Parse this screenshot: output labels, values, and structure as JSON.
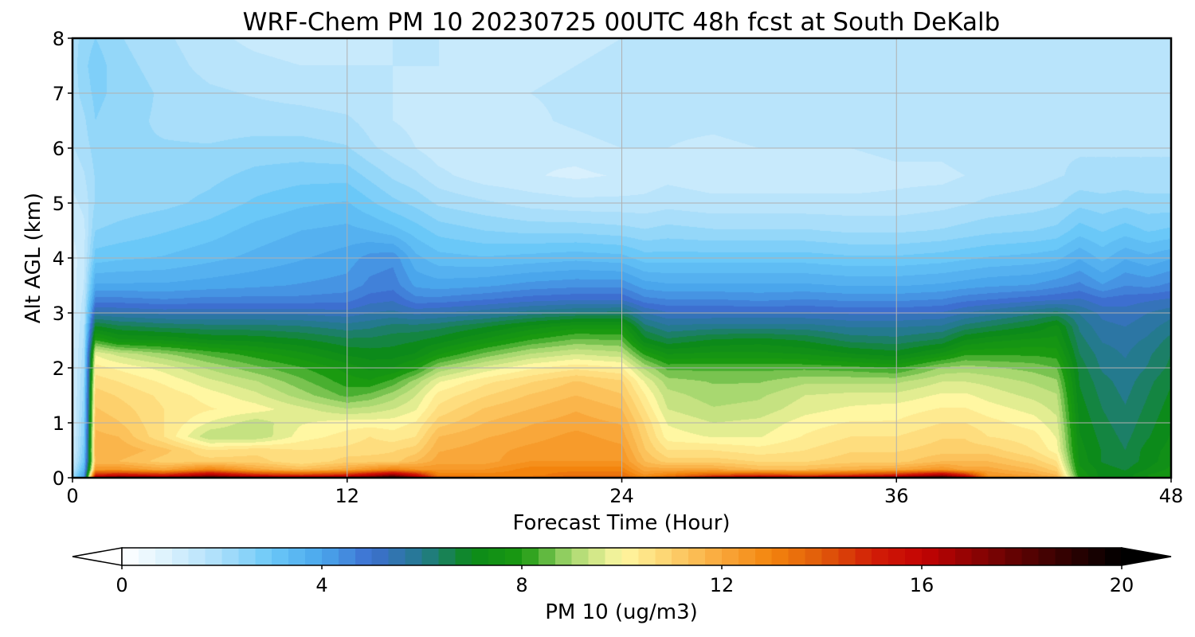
{
  "chart_data": {
    "type": "heatmap",
    "title": "WRF-Chem PM 10  20230725 00UTC 48h fcst at South DeKalb",
    "xlabel": "Forecast Time (Hour)",
    "ylabel": "Alt AGL (km)",
    "xlim": [
      0,
      48
    ],
    "ylim": [
      0,
      8
    ],
    "x_ticks": [
      0,
      12,
      24,
      36,
      48
    ],
    "y_ticks": [
      0,
      1,
      2,
      3,
      4,
      5,
      6,
      7,
      8
    ],
    "grid": true,
    "x": [
      0,
      0.5,
      1,
      2,
      4,
      6,
      8,
      10,
      12,
      13,
      14,
      15,
      16,
      18,
      20,
      22,
      24,
      25,
      26,
      28,
      30,
      32,
      34,
      36,
      38,
      39,
      40,
      42,
      43,
      44,
      45,
      46,
      47,
      48
    ],
    "y": [
      0,
      0.05,
      0.15,
      0.3,
      0.5,
      0.75,
      1,
      1.25,
      1.5,
      1.75,
      2,
      2.25,
      2.5,
      2.75,
      3,
      3.25,
      3.5,
      4,
      4.5,
      5,
      5.5,
      6,
      6.5,
      7,
      7.5,
      8
    ],
    "z_rows_by_altitude": [
      [
        2,
        4,
        17,
        18,
        17.5,
        18.5,
        17.5,
        17,
        17.5,
        18,
        19.5,
        17,
        14,
        13.5,
        13.5,
        14,
        14,
        13,
        14,
        16,
        17,
        16.5,
        17,
        18,
        19,
        17,
        13,
        12.5,
        12,
        8,
        7,
        7,
        7.5,
        8
      ],
      [
        2,
        4,
        15,
        15.5,
        15,
        16.5,
        15,
        14.5,
        15,
        16,
        17,
        15.5,
        13,
        13,
        13,
        13.5,
        13.5,
        12.5,
        13,
        14,
        14.5,
        14,
        14.5,
        15,
        16.5,
        15,
        12.5,
        12,
        11.5,
        7.8,
        7,
        7,
        7.5,
        7.8
      ],
      [
        1.5,
        3.5,
        12.5,
        12.5,
        12,
        13,
        12,
        11.5,
        12,
        12.5,
        13,
        12.5,
        12.5,
        12.5,
        13,
        13,
        13,
        12,
        12,
        12,
        11.5,
        11.5,
        11.8,
        12,
        12.5,
        12,
        12,
        11.5,
        11,
        7.6,
        7,
        6.8,
        7.2,
        7.6
      ],
      [
        1.2,
        3,
        11.5,
        11.5,
        11,
        11,
        11,
        10.5,
        11,
        11,
        11,
        11.5,
        12,
        12,
        12.5,
        12.5,
        12.5,
        11.5,
        11,
        11,
        10.8,
        10.8,
        11,
        11,
        11.5,
        11.5,
        11.5,
        11,
        10.5,
        7.4,
        6.8,
        6.6,
        7,
        7.4
      ],
      [
        1,
        2.8,
        11.8,
        11.8,
        11.3,
        10.5,
        10.7,
        10.5,
        10.6,
        10.7,
        10.8,
        11,
        11.8,
        12,
        12.3,
        12.5,
        12.3,
        11.2,
        10.5,
        10.5,
        10.3,
        10.5,
        10.8,
        10.8,
        11,
        11,
        11,
        10.5,
        10,
        7.3,
        6.8,
        6.5,
        7,
        7.3
      ],
      [
        1,
        2.6,
        11.6,
        11.5,
        10.5,
        9.2,
        9.2,
        10,
        10.3,
        10.5,
        10.3,
        10.5,
        11.5,
        11.8,
        12,
        12.3,
        12,
        11,
        10,
        9.8,
        9.8,
        10.2,
        10.5,
        10.5,
        10.8,
        10.8,
        10.5,
        10.3,
        9.8,
        7.2,
        6.7,
        6.4,
        6.8,
        7.2
      ],
      [
        1,
        2.5,
        11.4,
        11.2,
        10.5,
        9.8,
        9.3,
        9.8,
        10,
        10,
        10,
        10.2,
        11,
        11.5,
        11.8,
        12,
        11.8,
        10.8,
        9.8,
        9.5,
        9.6,
        10,
        10.2,
        10.2,
        10.5,
        10.5,
        10.3,
        10,
        9.6,
        7.1,
        6.6,
        6.3,
        6.7,
        7.1
      ],
      [
        1,
        2.4,
        11.2,
        11,
        10.5,
        10.2,
        10,
        9.6,
        9.2,
        9.3,
        9.5,
        9.8,
        10.6,
        11.2,
        11.5,
        11.8,
        11.5,
        10.5,
        9.5,
        9.2,
        9.3,
        9.7,
        9.9,
        10,
        10.2,
        10.2,
        10,
        9.7,
        9.4,
        7,
        6.5,
        6.2,
        6.6,
        7
      ],
      [
        1,
        2.3,
        11,
        10.8,
        10.4,
        10,
        9.6,
        9,
        8.4,
        8.6,
        9,
        9.5,
        10.3,
        10.8,
        11.2,
        11.5,
        11.2,
        10.2,
        9.3,
        9,
        9.1,
        9.5,
        9.6,
        9.6,
        9.9,
        9.9,
        9.7,
        9.4,
        9.2,
        6.9,
        6.4,
        6.1,
        6.5,
        6.9
      ],
      [
        1,
        2.2,
        10.7,
        10.5,
        10.1,
        9.6,
        9.2,
        8.6,
        8,
        7.9,
        8.3,
        9,
        9.8,
        10.4,
        10.8,
        11.2,
        10.9,
        9.8,
        9,
        8.8,
        8.8,
        9.1,
        9.1,
        9.1,
        9.5,
        9.5,
        9.4,
        9.1,
        8.9,
        6.8,
        6.3,
        6,
        6.4,
        6.8
      ],
      [
        1,
        2.1,
        10.3,
        10.1,
        9.7,
        9.1,
        8.6,
        8.2,
        7.7,
        7.4,
        7.5,
        8,
        8.9,
        9.6,
        10.1,
        10.4,
        10.2,
        9.1,
        8.4,
        8.4,
        8.4,
        8.4,
        8.3,
        8.1,
        8.9,
        9,
        8.9,
        8.7,
        8.5,
        6.7,
        6.1,
        5.9,
        6.2,
        6.6
      ],
      [
        1,
        2,
        9.8,
        9.4,
        8.9,
        8.4,
        8,
        7.6,
        7.1,
        7,
        7,
        7.2,
        7.8,
        8.6,
        9.2,
        9.5,
        9.3,
        8.1,
        7.5,
        7.6,
        7.6,
        7.5,
        7.2,
        7,
        7.6,
        8.1,
        8.1,
        8.1,
        8,
        6.5,
        6,
        5.8,
        6.1,
        6.5
      ],
      [
        1,
        1.9,
        8.2,
        7.6,
        7.5,
        7.2,
        7.1,
        6.9,
        6.6,
        6.6,
        6.7,
        6.8,
        7,
        7.6,
        8.2,
        8.6,
        8.5,
        7,
        6.6,
        6.9,
        7,
        6.8,
        6.4,
        6.3,
        6.6,
        7.2,
        7.4,
        7.6,
        7.6,
        6.3,
        5.8,
        5.7,
        5.9,
        6.3
      ],
      [
        1,
        1.8,
        6.9,
        6.6,
        6.4,
        6.3,
        6.3,
        6.2,
        6,
        6.1,
        6.3,
        6.3,
        6.4,
        6.8,
        7.3,
        7.7,
        7.7,
        6.3,
        5.9,
        6,
        6,
        6,
        5.8,
        5.8,
        5.9,
        6.3,
        6.5,
        6.9,
        7.3,
        6.1,
        5.6,
        5.5,
        5.7,
        6
      ],
      [
        1,
        1.7,
        5.6,
        5.5,
        5.4,
        5.4,
        5.4,
        5.4,
        5.3,
        5.5,
        5.6,
        5.4,
        5.5,
        5.7,
        6,
        6.2,
        6.3,
        5.5,
        5.2,
        5.2,
        5.2,
        5.2,
        5.1,
        5.1,
        5.2,
        5.5,
        5.7,
        6.1,
        6.3,
        5.8,
        5.4,
        5.3,
        5.5,
        5.7
      ],
      [
        1,
        1.6,
        4.6,
        4.6,
        4.5,
        4.6,
        4.6,
        4.6,
        4.7,
        5,
        5.1,
        4.6,
        4.6,
        4.8,
        5,
        5.1,
        5.1,
        4.6,
        4.5,
        4.5,
        4.4,
        4.5,
        4.4,
        4.4,
        4.5,
        4.7,
        4.8,
        5,
        5.1,
        5.2,
        4.9,
        5,
        5.1,
        5.2
      ],
      [
        1,
        1.5,
        3.9,
        3.9,
        3.9,
        4,
        4.1,
        4.2,
        4.3,
        4.6,
        4.7,
        4.1,
        4,
        4.1,
        4.3,
        4.4,
        4.4,
        4,
        3.9,
        3.9,
        3.9,
        3.9,
        3.8,
        3.8,
        3.9,
        4,
        4.1,
        4.2,
        4.4,
        4.6,
        4.2,
        4.5,
        4.4,
        4.6
      ],
      [
        1,
        1.4,
        3,
        3.1,
        3.2,
        3.4,
        3.6,
        3.8,
        4,
        4.3,
        4.4,
        3.6,
        3.3,
        3.2,
        3.3,
        3.4,
        3.3,
        3,
        3,
        3,
        3,
        3,
        2.9,
        2.9,
        3,
        3.1,
        3.2,
        3.3,
        3.4,
        3.8,
        3.4,
        3.8,
        3.6,
        3.8
      ],
      [
        1.2,
        1.4,
        2.5,
        2.6,
        2.8,
        3,
        3.3,
        3.5,
        3.6,
        3.5,
        3.3,
        3,
        2.7,
        2.5,
        2.4,
        2.4,
        2.3,
        2.2,
        2.3,
        2.2,
        2.2,
        2.2,
        2.1,
        2.1,
        2.2,
        2.3,
        2.4,
        2.5,
        2.6,
        3,
        2.8,
        3,
        2.8,
        2.9
      ],
      [
        1.4,
        1.6,
        2.2,
        2.3,
        2.4,
        2.6,
        2.9,
        3.1,
        3.2,
        2.9,
        2.6,
        2.4,
        2.1,
        1.9,
        1.7,
        1.6,
        1.6,
        1.6,
        1.7,
        1.6,
        1.6,
        1.6,
        1.6,
        1.6,
        1.7,
        1.8,
        1.9,
        2,
        2.1,
        2.4,
        2.3,
        2.4,
        2.3,
        2.3
      ],
      [
        1.6,
        1.8,
        2.2,
        2.2,
        2.3,
        2.4,
        2.6,
        2.7,
        2.7,
        2.4,
        2.1,
        1.9,
        1.6,
        1.3,
        1.2,
        1.1,
        1.2,
        1.3,
        1.4,
        1.3,
        1.3,
        1.3,
        1.3,
        1.4,
        1.4,
        1.5,
        1.6,
        1.7,
        1.8,
        1.9,
        1.9,
        1.9,
        1.9,
        1.9
      ],
      [
        1.8,
        2,
        2.3,
        2.2,
        2.2,
        2.2,
        2.3,
        2.3,
        2.2,
        1.9,
        1.7,
        1.5,
        1.3,
        1.2,
        1.2,
        1.3,
        1.5,
        1.5,
        1.5,
        1.4,
        1.5,
        1.5,
        1.5,
        1.6,
        1.6,
        1.7,
        1.7,
        1.8,
        1.8,
        1.8,
        1.8,
        1.8,
        1.8,
        1.8
      ],
      [
        1.9,
        2.1,
        2.5,
        2.3,
        2.1,
        2,
        2,
        2,
        1.9,
        1.7,
        1.5,
        1.4,
        1.3,
        1.3,
        1.4,
        1.6,
        1.8,
        1.7,
        1.6,
        1.6,
        1.7,
        1.7,
        1.7,
        1.7,
        1.7,
        1.7,
        1.7,
        1.7,
        1.7,
        1.7,
        1.7,
        1.7,
        1.7,
        1.7
      ],
      [
        2,
        2.3,
        2.6,
        2.4,
        2.1,
        1.9,
        1.8,
        1.7,
        1.6,
        1.5,
        1.5,
        1.4,
        1.4,
        1.4,
        1.5,
        1.6,
        1.7,
        1.7,
        1.7,
        1.7,
        1.8,
        1.8,
        1.8,
        1.7,
        1.7,
        1.7,
        1.7,
        1.7,
        1.7,
        1.7,
        1.7,
        1.7,
        1.7,
        1.7
      ],
      [
        2,
        2.4,
        2.7,
        2.3,
        2,
        1.7,
        1.6,
        1.5,
        1.5,
        1.5,
        1.5,
        1.5,
        1.5,
        1.4,
        1.4,
        1.5,
        1.6,
        1.6,
        1.7,
        1.7,
        1.7,
        1.7,
        1.7,
        1.7,
        1.7,
        1.7,
        1.7,
        1.7,
        1.7,
        1.7,
        1.7,
        1.7,
        1.7,
        1.7
      ],
      [
        2,
        2.3,
        2.5,
        2.2,
        1.9,
        1.6,
        1.4,
        1.3,
        1.3,
        1.4,
        1.5,
        1.5,
        1.5,
        1.4,
        1.4,
        1.4,
        1.5,
        1.5,
        1.6,
        1.6,
        1.7,
        1.7,
        1.7,
        1.7,
        1.7,
        1.7,
        1.7,
        1.7,
        1.7,
        1.7,
        1.7,
        1.7,
        1.7,
        1.7
      ]
    ],
    "colorbar": {
      "label": "PM 10  (ug/m3)",
      "range": [
        0,
        20
      ],
      "ticks": [
        0,
        4,
        8,
        12,
        16,
        20
      ],
      "extend": "both",
      "colors": {
        "0": "#ffffff",
        "1": "#d8f0fd",
        "2": "#a9defa",
        "3": "#6ac8f8",
        "4": "#4aa6ec",
        "5": "#3d6fd0",
        "6": "#247a8e",
        "7": "#0c8a1a",
        "8": "#1a9a10",
        "9": "#a8d870",
        "10": "#fff7a2",
        "11": "#fdd06c",
        "12": "#f9a73a",
        "13": "#f3840d",
        "14": "#e05a0a",
        "15": "#d21f06",
        "16": "#c40303",
        "17": "#8f0303",
        "18": "#5c0202",
        "19": "#2c0101",
        "20": "#000000"
      }
    }
  }
}
